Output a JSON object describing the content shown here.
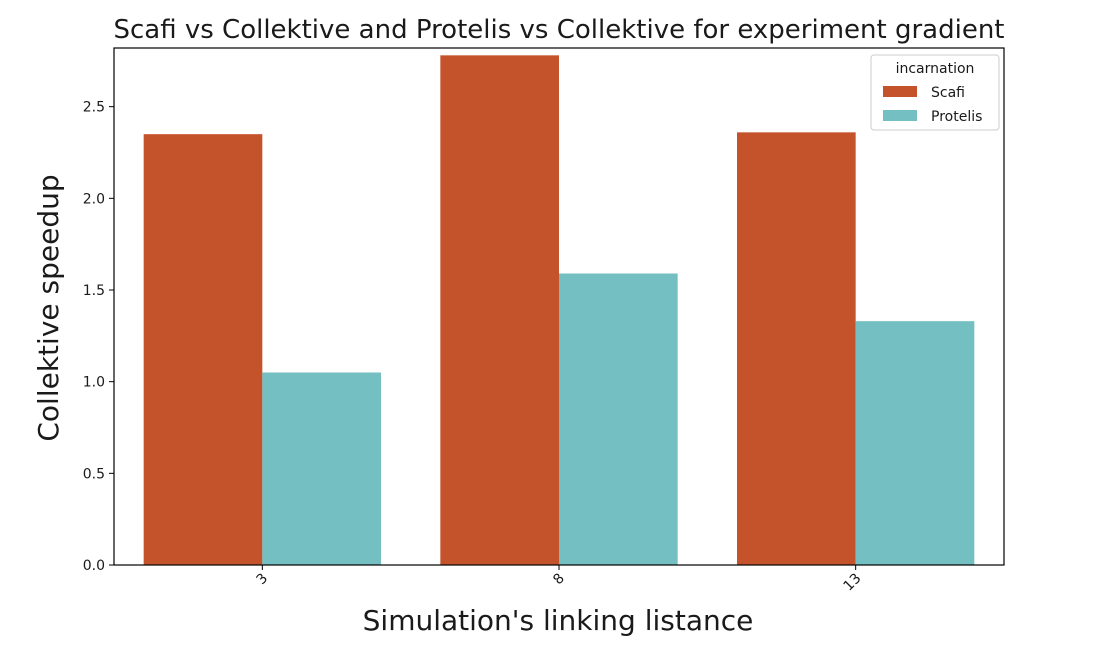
{
  "chart_data": {
    "type": "bar",
    "title": "Scafi vs Collektive and Protelis vs Collektive for experiment gradient",
    "xlabel": "Simulation's linking listance",
    "ylabel": "Collektive speedup",
    "categories": [
      "3",
      "8",
      "13"
    ],
    "series": [
      {
        "name": "Scafi",
        "values": [
          2.35,
          2.78,
          2.36
        ],
        "color": "#c4532b"
      },
      {
        "name": "Protelis",
        "values": [
          1.05,
          1.59,
          1.33
        ],
        "color": "#74bfc1"
      }
    ],
    "ylim": [
      0,
      2.82
    ],
    "yticks": [
      "0.0",
      "0.5",
      "1.0",
      "1.5",
      "2.0",
      "2.5"
    ],
    "grid": false,
    "legend": {
      "title": "incarnation",
      "placement": "top-right"
    },
    "xtick_rotation": "45"
  }
}
